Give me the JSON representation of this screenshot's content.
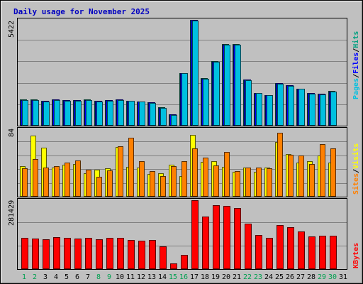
{
  "chart_data": {
    "type": "bar",
    "title": "Daily usage for November 2025",
    "categories": [
      "1",
      "2",
      "3",
      "4",
      "5",
      "6",
      "7",
      "8",
      "9",
      "10",
      "11",
      "12",
      "13",
      "14",
      "15",
      "16",
      "17",
      "18",
      "19",
      "20",
      "21",
      "22",
      "23",
      "24",
      "25",
      "26",
      "27",
      "28",
      "29",
      "30",
      "31"
    ],
    "weekend_days": [
      "1",
      "2",
      "8",
      "9",
      "15",
      "16",
      "22",
      "23",
      "29",
      "30"
    ],
    "panels": [
      {
        "id": "pages-files-hits",
        "ymax_label": "5422",
        "ylim": [
          0,
          5422
        ],
        "grid": true,
        "legend": [
          "Pages",
          "/",
          "Files",
          "/",
          "Hits"
        ],
        "series": [
          {
            "name": "Hits",
            "color": "#00a080",
            "values": [
              1330,
              1330,
              1270,
              1340,
              1320,
              1310,
              1330,
              1270,
              1310,
              1340,
              1290,
              1250,
              1210,
              930,
              580,
              2710,
              5422,
              2420,
              3300,
              4170,
              4170,
              2370,
              1690,
              1580,
              2190,
              2080,
              1910,
              1670,
              1640,
              1770,
              null
            ]
          },
          {
            "name": "Files",
            "color": "#0000ff",
            "values": [
              1320,
              1320,
              1260,
              1330,
              1310,
              1300,
              1320,
              1260,
              1300,
              1330,
              1280,
              1240,
              1200,
              920,
              570,
              2700,
              5422,
              2410,
              3290,
              4160,
              4160,
              2360,
              1680,
              1570,
              2180,
              2070,
              1900,
              1660,
              1630,
              1760,
              null
            ]
          },
          {
            "name": "Pages",
            "color": "#00c0e0",
            "values": [
              1300,
              1300,
              1240,
              1310,
              1290,
              1280,
              1300,
              1240,
              1280,
              1310,
              1260,
              1220,
              1180,
              900,
              550,
              2680,
              5400,
              2390,
              3270,
              4140,
              4140,
              2340,
              1660,
              1550,
              2160,
              2050,
              1880,
              1640,
              1610,
              1740,
              null
            ]
          }
        ]
      },
      {
        "id": "visits-sites",
        "ymax_label": "84",
        "ylim": [
          0,
          84
        ],
        "grid": true,
        "legend": [
          "Sites",
          "/",
          "Visits"
        ],
        "series": [
          {
            "name": "Visits",
            "color": "#ffff00",
            "values": [
              38,
              76,
              61,
              36,
              40,
              41,
              29,
              34,
              35,
              62,
              37,
              36,
              28,
              29,
              40,
              26,
              77,
              43,
              44,
              37,
              31,
              36,
              31,
              36,
              68,
              53,
              42,
              44,
              51,
              42,
              null
            ]
          },
          {
            "name": "Sites",
            "color": "#ff8000",
            "values": [
              35,
              47,
              36,
              38,
              42,
              45,
              34,
              25,
              33,
              63,
              73,
              44,
              32,
              26,
              38,
              44,
              60,
              49,
              39,
              56,
              32,
              36,
              36,
              35,
              80,
              52,
              51,
              41,
              65,
              60,
              null
            ]
          }
        ]
      },
      {
        "id": "kbytes",
        "ymax_label": "281429",
        "ylim": [
          0,
          281429
        ],
        "grid": true,
        "legend": [
          "KBytes"
        ],
        "series": [
          {
            "name": "KBytes",
            "color": "#ff0000",
            "values": [
              128000,
              126000,
              122000,
              130000,
              127000,
              124000,
              127000,
              121000,
              127000,
              128000,
              120000,
              115000,
              118000,
              93000,
              22000,
              57000,
              281429,
              215000,
              262000,
              257000,
              250000,
              187000,
              138000,
              128000,
              180000,
              171000,
              155000,
              134000,
              137000,
              137000,
              null
            ]
          }
        ]
      }
    ]
  }
}
